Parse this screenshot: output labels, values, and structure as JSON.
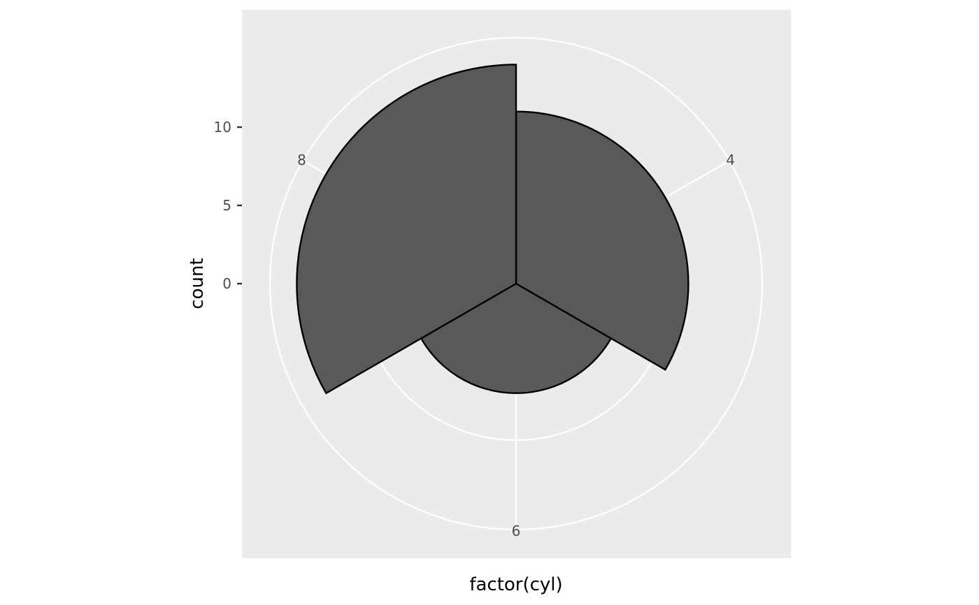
{
  "chart_data": {
    "type": "bar",
    "coord": "polar",
    "categories": [
      "4",
      "6",
      "8"
    ],
    "values": [
      11,
      7,
      14
    ],
    "xlabel": "factor(cyl)",
    "ylabel": "count",
    "yticks": [
      0,
      5,
      10
    ],
    "ylim": [
      0,
      14
    ],
    "grid": true,
    "colors": {
      "panel": "#EBEBEB",
      "grid": "#FFFFFF",
      "fill": "#595959",
      "outline": "#000000",
      "tick_text": "#4D4D4D"
    }
  }
}
